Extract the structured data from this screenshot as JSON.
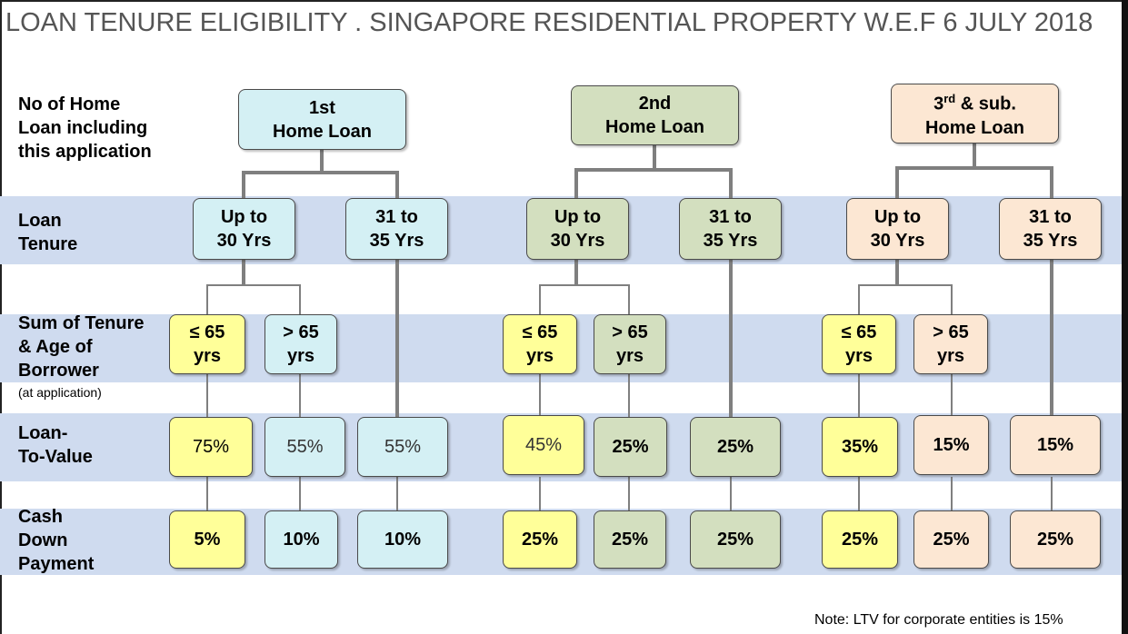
{
  "title": "LOAN TENURE ELIGIBILITY . SINGAPORE RESIDENTIAL PROPERTY W.E.F 6 JULY 2018",
  "row_labels": {
    "home_loan": [
      "No of Home",
      "Loan including",
      "this application"
    ],
    "tenure": [
      "Loan",
      "Tenure"
    ],
    "sum": [
      "Sum of Tenure",
      "& Age of",
      "Borrower"
    ],
    "sum_note": "(at application)",
    "ltv": [
      "Loan-",
      "To-Value"
    ],
    "cash": [
      "Cash",
      "Down",
      "Payment"
    ]
  },
  "loans": [
    {
      "line1": "1st",
      "line2": "Home Loan"
    },
    {
      "line1": "2nd",
      "line2": "Home Loan"
    },
    {
      "line1": "3",
      "sup": "rd",
      "line1_rest": " & sub.",
      "line2": "Home Loan"
    }
  ],
  "tenure": {
    "upto": [
      "Up to",
      "30 Yrs"
    ],
    "longer": [
      "31 to",
      "35 Yrs"
    ]
  },
  "age": {
    "le": [
      "≤ 65",
      "yrs"
    ],
    "gt": [
      "> 65",
      "yrs"
    ]
  },
  "ltv": [
    "75%",
    "55%",
    "55%",
    "45%",
    "25%",
    "25%",
    "35%",
    "15%",
    "15%"
  ],
  "cash": [
    "5%",
    "10%",
    "10%",
    "25%",
    "25%",
    "25%",
    "25%",
    "25%",
    "25%"
  ],
  "note": "Note: LTV for corporate entities is 15%",
  "colors": {
    "band": "#cfdbef",
    "loan1": "#d4f0f4",
    "loan2": "#d3dfbf",
    "loan3": "#fce7d3",
    "yellow": "#ffff99"
  }
}
